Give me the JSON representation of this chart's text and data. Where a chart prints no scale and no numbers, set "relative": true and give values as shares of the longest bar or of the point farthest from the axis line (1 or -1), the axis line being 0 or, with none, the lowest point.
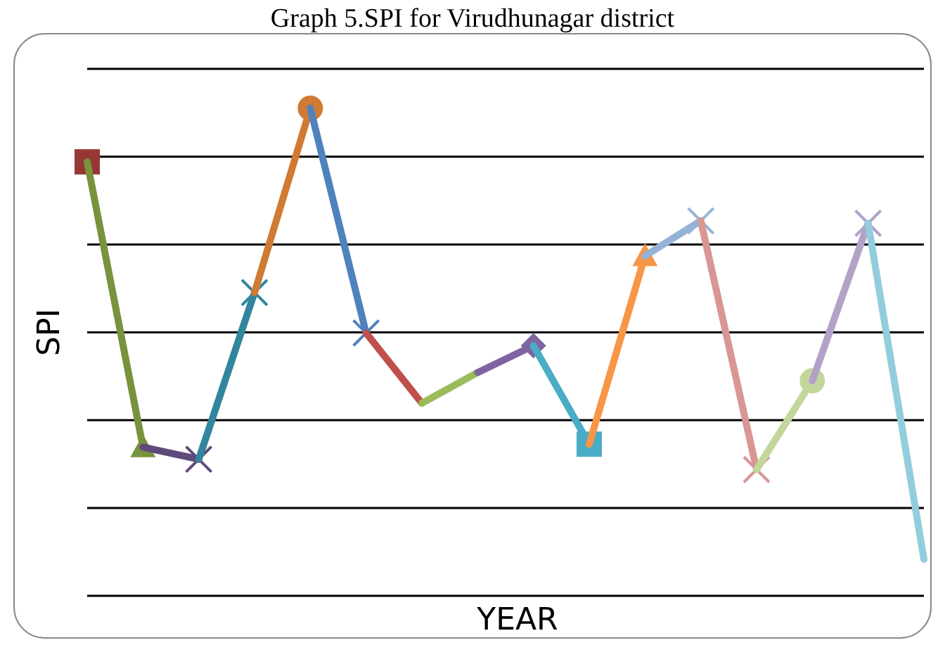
{
  "chart_data": {
    "type": "line",
    "title": "Graph 5.SPI for Virudhunagar district",
    "xlabel": "YEAR",
    "ylabel": "SPI",
    "relative": true,
    "grid": "y",
    "categories": [
      null,
      null,
      null,
      null,
      null,
      null,
      null,
      null,
      null,
      null,
      null,
      null,
      null,
      null,
      null,
      null
    ],
    "series": [
      {
        "color": "#953735",
        "marker": "square",
        "values": [
          0.89,
          null,
          null,
          null,
          null,
          null,
          null,
          null,
          null,
          null,
          null,
          null,
          null,
          null,
          null,
          null
        ]
      },
      {
        "color": "#77933c",
        "marker": "triangle",
        "values": [
          0.89,
          0.305,
          null,
          null,
          null,
          null,
          null,
          null,
          null,
          null,
          null,
          null,
          null,
          null,
          null,
          null
        ]
      },
      {
        "color": "#604a7b",
        "marker": "cross",
        "values": [
          null,
          0.305,
          0.28,
          null,
          null,
          null,
          null,
          null,
          null,
          null,
          null,
          null,
          null,
          null,
          null,
          null
        ]
      },
      {
        "color": "#31859c",
        "marker": "cross",
        "values": [
          null,
          null,
          0.28,
          0.622,
          null,
          null,
          null,
          null,
          null,
          null,
          null,
          null,
          null,
          null,
          null,
          null
        ]
      },
      {
        "color": "#d07a34",
        "marker": "circle",
        "values": [
          null,
          null,
          null,
          0.622,
          1,
          null,
          null,
          null,
          null,
          null,
          null,
          null,
          null,
          null,
          null,
          null
        ]
      },
      {
        "color": "#4f81bd",
        "marker": "cross",
        "values": [
          null,
          null,
          null,
          null,
          1,
          0.539,
          null,
          null,
          null,
          null,
          null,
          null,
          null,
          null,
          null,
          null
        ]
      },
      {
        "color": "#c0504d",
        "marker": "none",
        "values": [
          null,
          null,
          null,
          null,
          null,
          0.539,
          0.395,
          null,
          null,
          null,
          null,
          null,
          null,
          null,
          null,
          null
        ]
      },
      {
        "color": "#9bbb59",
        "marker": "none",
        "values": [
          null,
          null,
          null,
          null,
          null,
          null,
          0.395,
          0.458,
          null,
          null,
          null,
          null,
          null,
          null,
          null,
          null
        ]
      },
      {
        "color": "#8064a2",
        "marker": "diamond",
        "values": [
          null,
          null,
          null,
          null,
          null,
          null,
          null,
          0.458,
          0.513,
          null,
          null,
          null,
          null,
          null,
          null,
          null
        ]
      },
      {
        "color": "#4bacc6",
        "marker": "square",
        "values": [
          null,
          null,
          null,
          null,
          null,
          null,
          null,
          null,
          0.513,
          0.311,
          null,
          null,
          null,
          null,
          null,
          null
        ]
      },
      {
        "color": "#f79646",
        "marker": "triangle",
        "values": [
          null,
          null,
          null,
          null,
          null,
          null,
          null,
          null,
          null,
          0.311,
          0.697,
          null,
          null,
          null,
          null,
          null
        ]
      },
      {
        "color": "#95b3d7",
        "marker": "cross",
        "values": [
          null,
          null,
          null,
          null,
          null,
          null,
          null,
          null,
          null,
          null,
          0.697,
          0.769,
          null,
          null,
          null,
          null
        ]
      },
      {
        "color": "#d99694",
        "marker": "cross",
        "values": [
          null,
          null,
          null,
          null,
          null,
          null,
          null,
          null,
          null,
          null,
          null,
          0.769,
          0.259,
          null,
          null,
          null
        ]
      },
      {
        "color": "#c3d69b",
        "marker": "circle",
        "values": [
          null,
          null,
          null,
          null,
          null,
          null,
          null,
          null,
          null,
          null,
          null,
          null,
          0.259,
          0.441,
          null,
          null
        ]
      },
      {
        "color": "#b3a2c7",
        "marker": "cross",
        "values": [
          null,
          null,
          null,
          null,
          null,
          null,
          null,
          null,
          null,
          null,
          null,
          null,
          null,
          0.441,
          0.764,
          null
        ]
      },
      {
        "color": "#93cddd",
        "marker": "none",
        "values": [
          null,
          null,
          null,
          null,
          null,
          null,
          null,
          null,
          null,
          null,
          null,
          null,
          null,
          null,
          0.764,
          0.075
        ]
      }
    ]
  }
}
